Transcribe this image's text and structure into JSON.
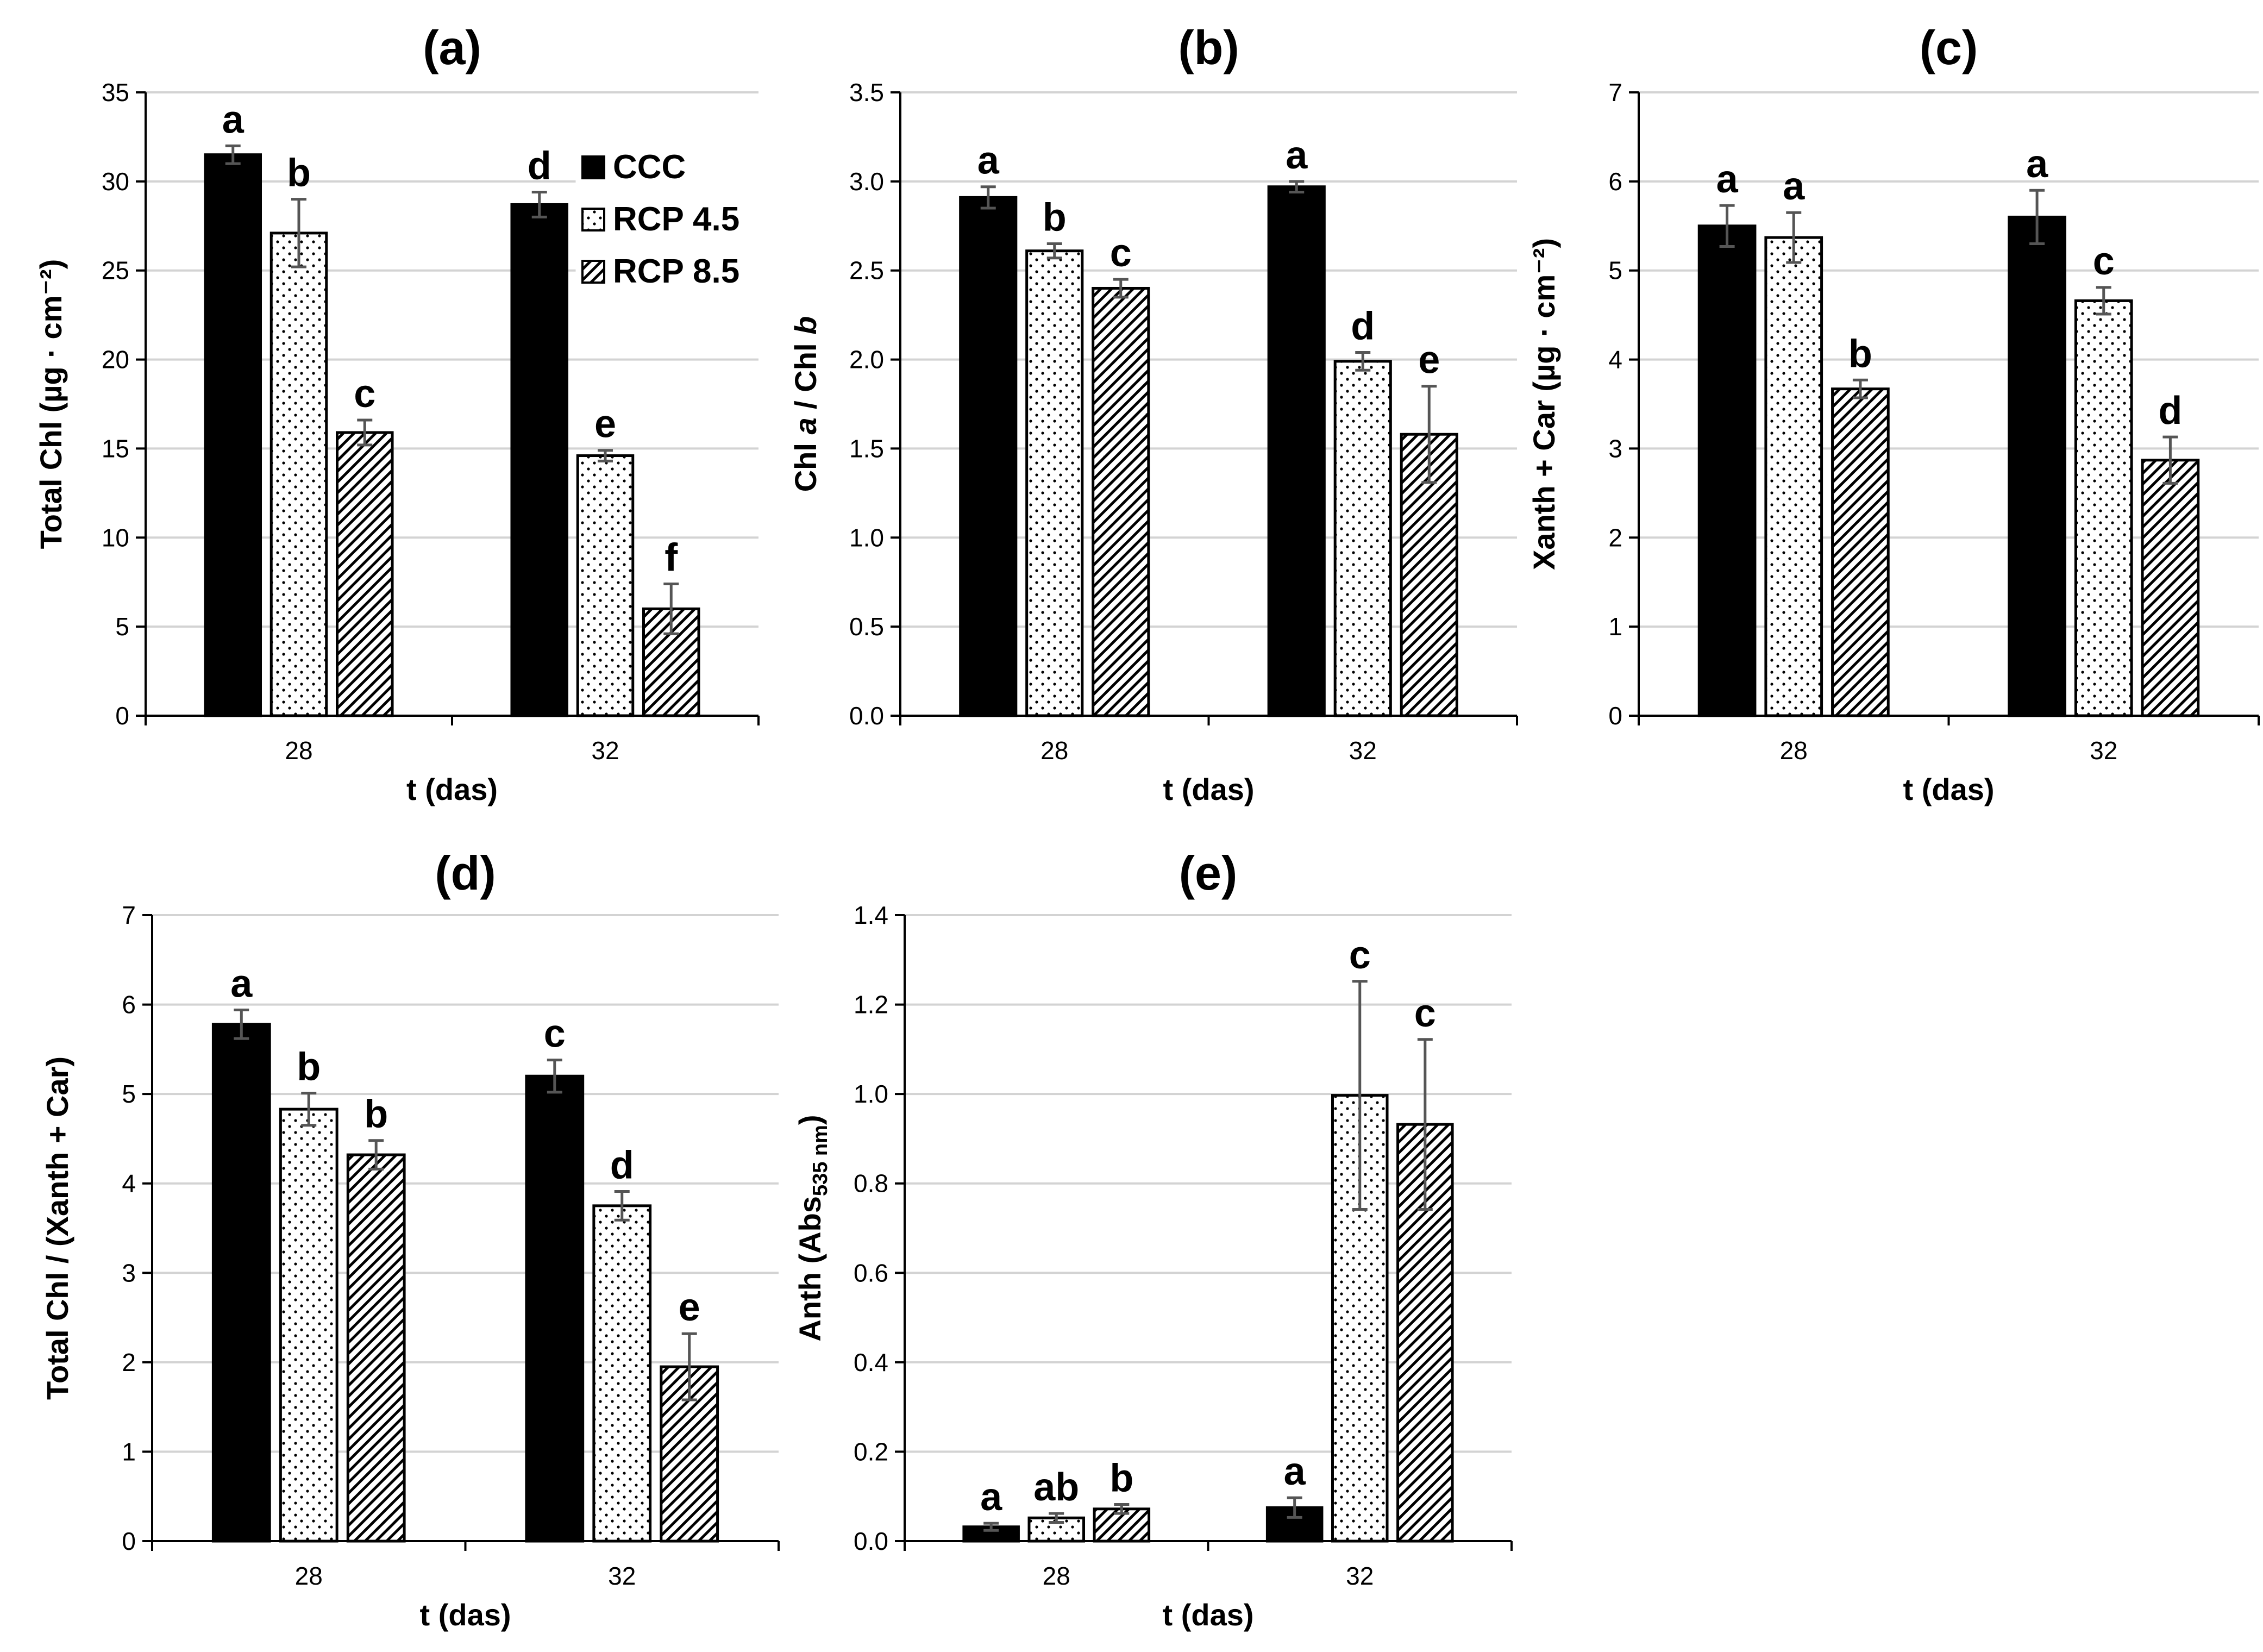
{
  "figure_kind": "multi-panel bar chart",
  "legend": {
    "items": [
      {
        "name": "CCC",
        "fill": "solid",
        "color": "#000000"
      },
      {
        "name": "RCP 4.5",
        "fill": "dots",
        "color": "#ffffff"
      },
      {
        "name": "RCP 8.5",
        "fill": "hatch",
        "color": "#ffffff"
      }
    ]
  },
  "colors": {
    "ccc": "#000000",
    "pattern_ink": "#000000",
    "grid": "#d3d3d3",
    "error_bar": "#555555"
  },
  "chart_data": [
    {
      "type": "bar",
      "panel": "(a)",
      "title": "(a)",
      "xlabel": "t (das)",
      "ylabel": "Total Chl (µg · cm⁻²)",
      "categories": [
        "28",
        "32"
      ],
      "ylim": [
        0,
        35
      ],
      "yticks": [
        0,
        5,
        10,
        15,
        20,
        25,
        30,
        35
      ],
      "ytick_labels": [
        "0",
        "5",
        "10",
        "15",
        "20",
        "25",
        "30",
        "35"
      ],
      "grid": true,
      "legend_position": "top-right",
      "series": [
        {
          "name": "CCC",
          "values": [
            31.5,
            28.7
          ],
          "errors": [
            0.5,
            0.7
          ],
          "letters": [
            "a",
            "d"
          ]
        },
        {
          "name": "RCP 4.5",
          "values": [
            27.1,
            14.6
          ],
          "errors": [
            1.9,
            0.3
          ],
          "letters": [
            "b",
            "e"
          ]
        },
        {
          "name": "RCP 8.5",
          "values": [
            15.9,
            6.0
          ],
          "errors": [
            0.7,
            1.4
          ],
          "letters": [
            "c",
            "f"
          ]
        }
      ]
    },
    {
      "type": "bar",
      "panel": "(b)",
      "title": "(b)",
      "xlabel": "t (das)",
      "ylabel_parts": [
        "Chl ",
        "a",
        " / Chl ",
        "b"
      ],
      "categories": [
        "28",
        "32"
      ],
      "ylim": [
        0,
        3.5
      ],
      "yticks": [
        0,
        0.5,
        1.0,
        1.5,
        2.0,
        2.5,
        3.0,
        3.5
      ],
      "ytick_labels": [
        "0.0",
        "0.5",
        "1.0",
        "1.5",
        "2.0",
        "2.5",
        "3.0",
        "3.5"
      ],
      "grid": true,
      "series": [
        {
          "name": "CCC",
          "values": [
            2.91,
            2.97
          ],
          "errors": [
            0.06,
            0.03
          ],
          "letters": [
            "a",
            "a"
          ]
        },
        {
          "name": "RCP 4.5",
          "values": [
            2.61,
            1.99
          ],
          "errors": [
            0.04,
            0.05
          ],
          "letters": [
            "b",
            "d"
          ]
        },
        {
          "name": "RCP 8.5",
          "values": [
            2.4,
            1.58
          ],
          "errors": [
            0.05,
            0.27
          ],
          "letters": [
            "c",
            "e"
          ]
        }
      ]
    },
    {
      "type": "bar",
      "panel": "(c)",
      "title": "(c)",
      "xlabel": "t (das)",
      "ylabel": "Xanth + Car (µg · cm⁻²)",
      "categories": [
        "28",
        "32"
      ],
      "ylim": [
        0,
        7
      ],
      "yticks": [
        0,
        1,
        2,
        3,
        4,
        5,
        6,
        7
      ],
      "ytick_labels": [
        "0",
        "1",
        "2",
        "3",
        "4",
        "5",
        "6",
        "7"
      ],
      "grid": true,
      "series": [
        {
          "name": "CCC",
          "values": [
            5.5,
            5.6
          ],
          "errors": [
            0.23,
            0.3
          ],
          "letters": [
            "a",
            "a"
          ]
        },
        {
          "name": "RCP 4.5",
          "values": [
            5.37,
            4.66
          ],
          "errors": [
            0.28,
            0.15
          ],
          "letters": [
            "a",
            "c"
          ]
        },
        {
          "name": "RCP 8.5",
          "values": [
            3.67,
            2.87
          ],
          "errors": [
            0.1,
            0.26
          ],
          "letters": [
            "b",
            "d"
          ]
        }
      ]
    },
    {
      "type": "bar",
      "panel": "(d)",
      "title": "(d)",
      "xlabel": "t (das)",
      "ylabel": "Total Chl / (Xanth + Car)",
      "categories": [
        "28",
        "32"
      ],
      "ylim": [
        0,
        7
      ],
      "yticks": [
        0,
        1,
        2,
        3,
        4,
        5,
        6,
        7
      ],
      "ytick_labels": [
        "0",
        "1",
        "2",
        "3",
        "4",
        "5",
        "6",
        "7"
      ],
      "grid": true,
      "series": [
        {
          "name": "CCC",
          "values": [
            5.78,
            5.2
          ],
          "errors": [
            0.16,
            0.18
          ],
          "letters": [
            "a",
            "c"
          ]
        },
        {
          "name": "RCP 4.5",
          "values": [
            4.83,
            3.75
          ],
          "errors": [
            0.18,
            0.16
          ],
          "letters": [
            "b",
            "d"
          ]
        },
        {
          "name": "RCP 8.5",
          "values": [
            4.32,
            1.95
          ],
          "errors": [
            0.16,
            0.37
          ],
          "letters": [
            "b",
            "e"
          ]
        }
      ]
    },
    {
      "type": "bar",
      "panel": "(e)",
      "title": "(e)",
      "xlabel": "t (das)",
      "ylabel_parts": [
        "Anth (Abs",
        "535 nm",
        ")"
      ],
      "categories": [
        "28",
        "32"
      ],
      "ylim": [
        0,
        1.4
      ],
      "yticks": [
        0,
        0.2,
        0.4,
        0.6,
        0.8,
        1.0,
        1.2,
        1.4
      ],
      "ytick_labels": [
        "0.0",
        "0.2",
        "0.4",
        "0.6",
        "0.8",
        "1.0",
        "1.2",
        "1.4"
      ],
      "grid": true,
      "series": [
        {
          "name": "CCC",
          "values": [
            0.032,
            0.075
          ],
          "errors": [
            0.008,
            0.022
          ],
          "letters": [
            "a",
            "a"
          ]
        },
        {
          "name": "RCP 4.5",
          "values": [
            0.052,
            0.997
          ],
          "errors": [
            0.01,
            0.255
          ],
          "letters": [
            "ab",
            "c"
          ]
        },
        {
          "name": "RCP 8.5",
          "values": [
            0.072,
            0.932
          ],
          "errors": [
            0.01,
            0.19
          ],
          "letters": [
            "b",
            "c"
          ]
        }
      ]
    }
  ]
}
